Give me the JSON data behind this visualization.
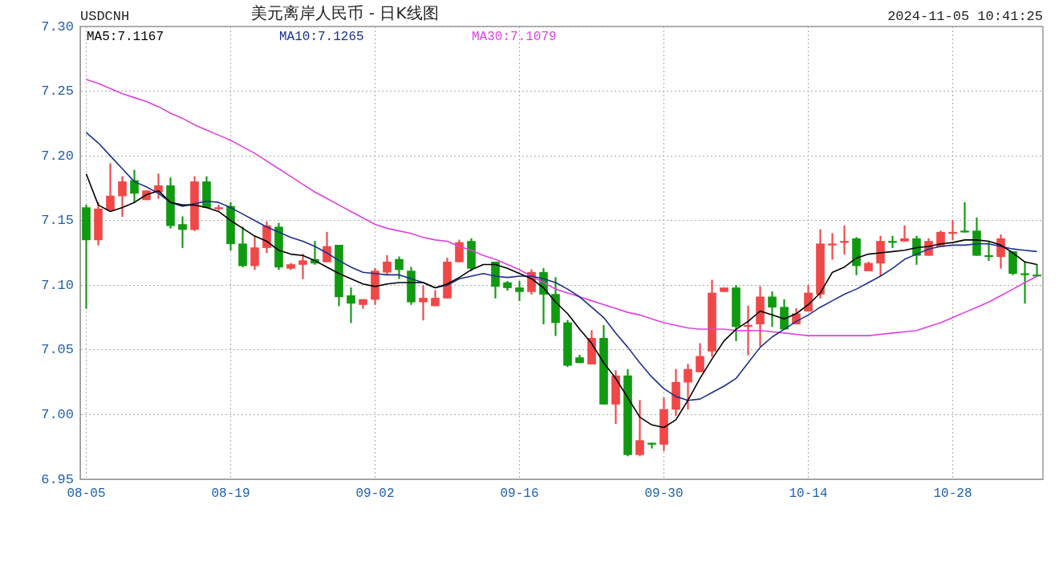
{
  "chart_data": {
    "type": "candlestick",
    "title": "美元离岸人民币 - 日K线图",
    "annotations": [
      "USDCNH",
      "2024-11-05 10:41:25"
    ],
    "categories": [
      "08-05",
      null,
      null,
      null,
      null,
      null,
      null,
      null,
      null,
      null,
      null,
      null,
      "08-19",
      null,
      null,
      null,
      null,
      null,
      null,
      null,
      null,
      null,
      null,
      null,
      "09-02",
      null,
      null,
      null,
      null,
      null,
      null,
      null,
      null,
      null,
      null,
      null,
      "09-16",
      null,
      null,
      null,
      null,
      null,
      null,
      null,
      null,
      null,
      null,
      null,
      "09-30",
      null,
      null,
      null,
      null,
      null,
      null,
      null,
      null,
      null,
      null,
      null,
      "10-14",
      null,
      null,
      null,
      null,
      null,
      null,
      null,
      null,
      null,
      null,
      null,
      "10-28",
      null,
      null,
      null,
      null,
      null,
      null,
      null
    ],
    "ohlc": [
      [
        7.16,
        7.162,
        7.082,
        7.135
      ],
      [
        7.135,
        7.164,
        7.131,
        7.159
      ],
      [
        7.158,
        7.194,
        7.158,
        7.169
      ],
      [
        7.169,
        7.184,
        7.153,
        7.18
      ],
      [
        7.181,
        7.189,
        7.164,
        7.171
      ],
      [
        7.166,
        7.173,
        7.166,
        7.173
      ],
      [
        7.172,
        7.186,
        7.167,
        7.177
      ],
      [
        7.177,
        7.183,
        7.144,
        7.146
      ],
      [
        7.147,
        7.153,
        7.129,
        7.143
      ],
      [
        7.143,
        7.184,
        7.142,
        7.18
      ],
      [
        7.18,
        7.184,
        7.16,
        7.16
      ],
      [
        7.159,
        7.162,
        7.158,
        7.16
      ],
      [
        7.161,
        7.164,
        7.127,
        7.132
      ],
      [
        7.132,
        7.145,
        7.114,
        7.115
      ],
      [
        7.115,
        7.138,
        7.112,
        7.129
      ],
      [
        7.129,
        7.149,
        7.125,
        7.146
      ],
      [
        7.145,
        7.148,
        7.112,
        7.114
      ],
      [
        7.113,
        7.117,
        7.112,
        7.116
      ],
      [
        7.116,
        7.124,
        7.105,
        7.119
      ],
      [
        7.12,
        7.134,
        7.116,
        7.117
      ],
      [
        7.118,
        7.141,
        7.118,
        7.13
      ],
      [
        7.131,
        7.131,
        7.084,
        7.091
      ],
      [
        7.092,
        7.098,
        7.071,
        7.086
      ],
      [
        7.085,
        7.089,
        7.082,
        7.089
      ],
      [
        7.089,
        7.113,
        7.085,
        7.111
      ],
      [
        7.11,
        7.123,
        7.108,
        7.118
      ],
      [
        7.12,
        7.122,
        7.105,
        7.112
      ],
      [
        7.111,
        7.114,
        7.085,
        7.087
      ],
      [
        7.087,
        7.1,
        7.073,
        7.09
      ],
      [
        7.084,
        7.096,
        7.084,
        7.09
      ],
      [
        7.09,
        7.121,
        7.09,
        7.118
      ],
      [
        7.118,
        7.135,
        7.118,
        7.133
      ],
      [
        7.134,
        7.136,
        7.111,
        7.113
      ],
      null,
      [
        7.118,
        7.118,
        7.09,
        7.099
      ],
      [
        7.102,
        7.103,
        7.096,
        7.098
      ],
      [
        7.098,
        7.103,
        7.088,
        7.095
      ],
      [
        7.095,
        7.112,
        7.093,
        7.11
      ],
      [
        7.11,
        7.113,
        7.07,
        7.093
      ],
      [
        7.093,
        7.106,
        7.061,
        7.071
      ],
      [
        7.071,
        7.073,
        7.037,
        7.038
      ],
      [
        7.044,
        7.046,
        7.04,
        7.04
      ],
      [
        7.039,
        7.065,
        7.039,
        7.059
      ],
      [
        7.059,
        7.069,
        7.008,
        7.008
      ],
      [
        7.008,
        7.034,
        6.993,
        7.03
      ],
      [
        7.03,
        7.035,
        6.968,
        6.969
      ],
      [
        6.969,
        7.011,
        6.968,
        6.98
      ],
      [
        6.978,
        6.978,
        6.974,
        6.977
      ],
      [
        6.977,
        7.013,
        6.972,
        7.004
      ],
      [
        7.004,
        7.035,
        6.999,
        7.025
      ],
      [
        7.025,
        7.039,
        7.004,
        7.035
      ],
      [
        7.033,
        7.055,
        7.033,
        7.045
      ],
      [
        7.049,
        7.104,
        7.045,
        7.094
      ],
      [
        7.095,
        7.098,
        7.095,
        7.098
      ],
      [
        7.098,
        7.1,
        7.057,
        7.068
      ],
      [
        7.068,
        7.084,
        7.046,
        7.069
      ],
      [
        7.07,
        7.099,
        7.053,
        7.091
      ],
      [
        7.091,
        7.095,
        7.068,
        7.083
      ],
      [
        7.083,
        7.089,
        7.066,
        7.066
      ],
      [
        7.07,
        7.082,
        7.07,
        7.078
      ],
      [
        7.08,
        7.1,
        7.08,
        7.094
      ],
      [
        7.093,
        7.143,
        7.09,
        7.132
      ],
      [
        7.131,
        7.14,
        7.12,
        7.132
      ],
      [
        7.133,
        7.146,
        7.124,
        7.134
      ],
      [
        7.136,
        7.137,
        7.108,
        7.115
      ],
      [
        7.111,
        7.118,
        7.111,
        7.117
      ],
      [
        7.117,
        7.138,
        7.107,
        7.134
      ],
      [
        7.134,
        7.138,
        7.129,
        7.133
      ],
      [
        7.134,
        7.146,
        7.134,
        7.136
      ],
      [
        7.136,
        7.138,
        7.116,
        7.123
      ],
      [
        7.123,
        7.136,
        7.123,
        7.134
      ],
      [
        7.13,
        7.142,
        7.13,
        7.141
      ],
      [
        7.14,
        7.15,
        7.135,
        7.141
      ],
      [
        7.142,
        7.164,
        7.141,
        7.141
      ],
      [
        7.142,
        7.152,
        7.123,
        7.123
      ],
      [
        7.123,
        7.134,
        7.119,
        7.122
      ],
      [
        7.122,
        7.139,
        7.113,
        7.136
      ],
      [
        7.126,
        7.126,
        7.108,
        7.109
      ],
      [
        7.109,
        7.118,
        7.086,
        7.108
      ],
      [
        7.108,
        7.116,
        7.107,
        7.107
      ]
    ],
    "colors": [
      "#109a10",
      "#f04848",
      "#f04848",
      "#f04848",
      "#109a10",
      "#f04848",
      "#f04848",
      "#109a10",
      "#109a10",
      "#f04848",
      "#109a10",
      "#f04848",
      "#109a10",
      "#109a10",
      "#f04848",
      "#f04848",
      "#109a10",
      "#f04848",
      "#f04848",
      "#109a10",
      "#f04848",
      "#109a10",
      "#109a10",
      "#f04848",
      "#f04848",
      "#f04848",
      "#109a10",
      "#109a10",
      "#f04848",
      "#f04848",
      "#f04848",
      "#f04848",
      "#109a10",
      "#109a10",
      "#109a10",
      "#109a10",
      "#109a10",
      "#f04848",
      "#109a10",
      "#109a10",
      "#109a10",
      "#109a10",
      "#f04848",
      "#109a10",
      "#f04848",
      "#109a10",
      "#f04848",
      "#109a10",
      "#f04848",
      "#f04848",
      "#f04848",
      "#f04848",
      "#f04848",
      "#f04848",
      "#109a10",
      "#f04848",
      "#f04848",
      "#109a10",
      "#109a10",
      "#f04848",
      "#f04848",
      "#f04848",
      "#f04848",
      "#f04848",
      "#109a10",
      "#f04848",
      "#f04848",
      "#109a10",
      "#f04848",
      "#109a10",
      "#f04848",
      "#f04848",
      "#f04848",
      "#109a10",
      "#109a10",
      "#109a10",
      "#f04848",
      "#109a10",
      "#109a10",
      "#109a10"
    ],
    "series": [
      {
        "name": "MA5:7.1167",
        "type": "line",
        "color": "#000000",
        "values": [
          7.186,
          7.162,
          7.157,
          7.16,
          7.164,
          7.17,
          7.173,
          7.164,
          7.162,
          7.162,
          7.16,
          7.157,
          7.15,
          7.144,
          7.138,
          7.134,
          7.127,
          7.124,
          7.123,
          7.119,
          7.114,
          7.109,
          7.105,
          7.101,
          7.099,
          7.101,
          7.102,
          7.102,
          7.102,
          7.098,
          7.101,
          7.106,
          7.112,
          7.116,
          7.116,
          7.113,
          7.109,
          7.105,
          7.098,
          7.087,
          7.078,
          7.066,
          7.055,
          7.04,
          7.028,
          7.013,
          6.998,
          6.992,
          6.99,
          6.996,
          7.011,
          7.028,
          7.043,
          7.057,
          7.066,
          7.072,
          7.08,
          7.077,
          7.074,
          7.078,
          7.085,
          7.094,
          7.11,
          7.114,
          7.121,
          7.124,
          7.125,
          7.126,
          7.127,
          7.129,
          7.13,
          7.132,
          7.133,
          7.135,
          7.135,
          7.134,
          7.131,
          7.125,
          7.118,
          7.116
        ]
      },
      {
        "name": "MA10:7.1265",
        "type": "line",
        "color": "#1c2f8f",
        "values": [
          7.218,
          7.21,
          7.2,
          7.19,
          7.18,
          7.176,
          7.171,
          7.164,
          7.161,
          7.163,
          7.165,
          7.164,
          7.16,
          7.155,
          7.15,
          7.145,
          7.141,
          7.137,
          7.134,
          7.13,
          7.125,
          7.119,
          7.114,
          7.11,
          7.109,
          7.108,
          7.108,
          7.105,
          7.102,
          7.098,
          7.1,
          7.105,
          7.107,
          7.109,
          7.107,
          7.106,
          7.107,
          7.107,
          7.105,
          7.102,
          7.097,
          7.091,
          7.083,
          7.075,
          7.063,
          7.052,
          7.04,
          7.029,
          7.02,
          7.014,
          7.011,
          7.012,
          7.017,
          7.022,
          7.028,
          7.04,
          7.052,
          7.06,
          7.066,
          7.072,
          7.077,
          7.083,
          7.088,
          7.093,
          7.097,
          7.102,
          7.107,
          7.113,
          7.12,
          7.124,
          7.128,
          7.13,
          7.131,
          7.131,
          7.132,
          7.132,
          7.13,
          7.128,
          7.127,
          7.126
        ]
      },
      {
        "name": "MA30:7.1079",
        "type": "line",
        "color": "#e040e0",
        "values": [
          7.259,
          7.256,
          7.252,
          7.248,
          7.245,
          7.242,
          7.238,
          7.233,
          7.229,
          7.224,
          7.22,
          7.216,
          7.212,
          7.207,
          7.202,
          7.196,
          7.19,
          7.184,
          7.178,
          7.172,
          7.167,
          7.162,
          7.157,
          7.152,
          7.147,
          7.144,
          7.142,
          7.14,
          7.137,
          7.135,
          7.134,
          7.13,
          7.127,
          7.123,
          7.12,
          7.116,
          7.112,
          7.107,
          7.102,
          7.097,
          7.094,
          7.091,
          7.088,
          7.085,
          7.082,
          7.079,
          7.077,
          7.074,
          7.071,
          7.069,
          7.067,
          7.066,
          7.066,
          7.066,
          7.065,
          7.065,
          7.065,
          7.064,
          7.063,
          7.062,
          7.061,
          7.061,
          7.061,
          7.061,
          7.061,
          7.061,
          7.062,
          7.063,
          7.064,
          7.065,
          7.068,
          7.071,
          7.075,
          7.079,
          7.083,
          7.087,
          7.092,
          7.097,
          7.102,
          7.107
        ]
      }
    ],
    "ylim": [
      6.95,
      7.3
    ],
    "yticks": [
      6.95,
      {
        "value": 7.0,
        "label": "7.00"
      },
      7.05,
      {
        "value": 7.1,
        "label": "7.10"
      },
      7.15,
      {
        "value": 7.2,
        "label": "7.20"
      },
      7.25,
      {
        "value": 7.3,
        "label": "7.30"
      }
    ],
    "grid": true,
    "legend": "top left"
  }
}
